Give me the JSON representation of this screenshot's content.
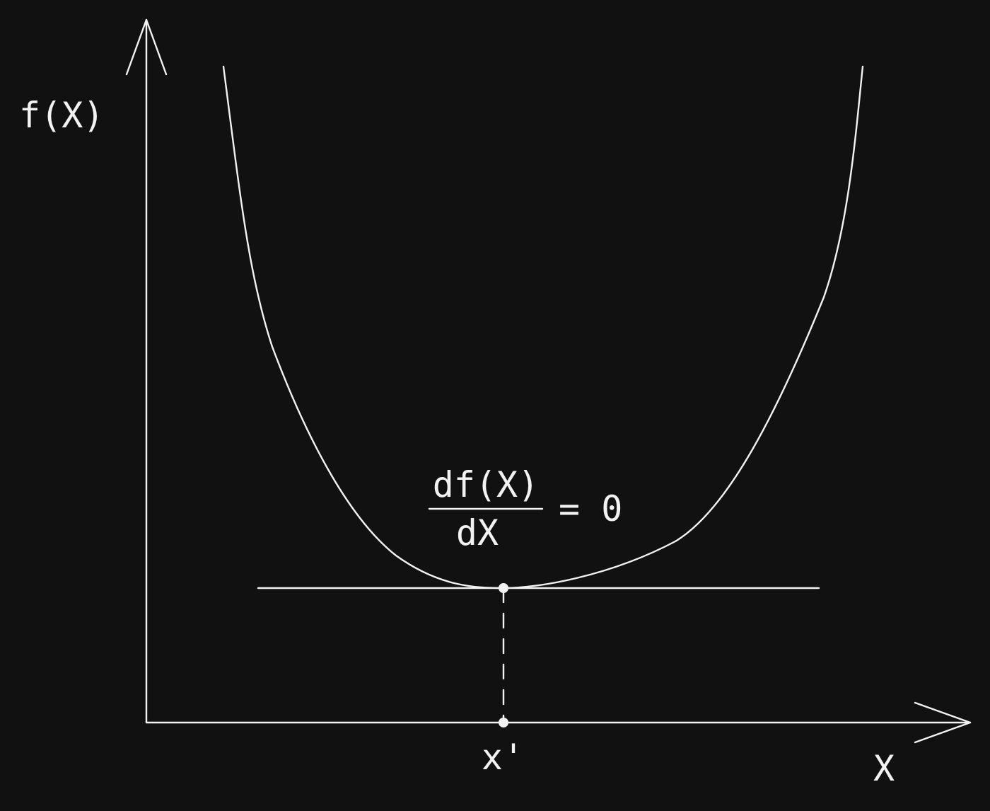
{
  "labels": {
    "y_axis": "f(X)",
    "x_axis": "X",
    "minimum_point": "x'",
    "condition": {
      "numerator": "df(X)",
      "denominator": "dX",
      "rhs": "= 0"
    }
  },
  "colors": {
    "background": "#111111",
    "ink": "#f2f2f2"
  }
}
